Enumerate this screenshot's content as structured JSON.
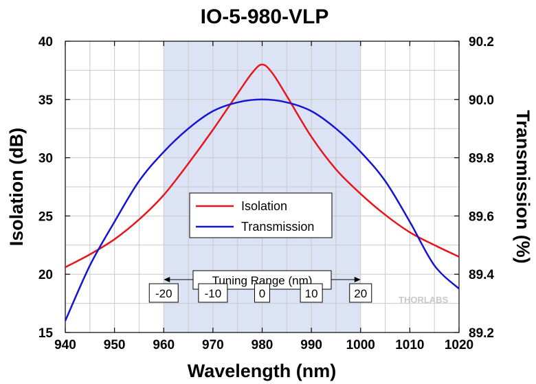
{
  "chart_data": {
    "type": "line",
    "title": "IO-5-980-VLP",
    "xlabel": "Wavelength (nm)",
    "ylabel": "Isolation (dB)",
    "y2label": "Transmission (%)",
    "xlim": [
      940,
      1020
    ],
    "ylim": [
      15,
      40
    ],
    "y2lim": [
      89.2,
      90.2
    ],
    "x_ticks": [
      940,
      950,
      960,
      970,
      980,
      990,
      1000,
      1010,
      1020
    ],
    "y_ticks": [
      15,
      20,
      25,
      30,
      35,
      40
    ],
    "y2_ticks": [
      "89.2",
      "89.4",
      "89.6",
      "89.8",
      "90.0",
      "90.2"
    ],
    "grid": true,
    "shaded_region": {
      "x": [
        960,
        1000
      ],
      "color": "#dbe3f5"
    },
    "legend": {
      "placement": "center"
    },
    "series": [
      {
        "name": "Isolation",
        "axis": "left",
        "color": "#e8141b",
        "x": [
          940,
          945,
          950,
          955,
          960,
          965,
          970,
          975,
          978,
          980,
          982,
          985,
          990,
          995,
          1000,
          1005,
          1010,
          1015,
          1020
        ],
        "values": [
          20.6,
          21.7,
          23.0,
          24.7,
          26.8,
          29.5,
          32.4,
          35.5,
          37.3,
          38.0,
          37.3,
          35.3,
          31.8,
          29.0,
          26.9,
          25.1,
          23.6,
          22.5,
          21.5
        ]
      },
      {
        "name": "Transmission",
        "axis": "right",
        "color": "#1414d2",
        "x": [
          940,
          945,
          950,
          955,
          960,
          965,
          970,
          975,
          980,
          985,
          990,
          995,
          1000,
          1005,
          1010,
          1015,
          1020
        ],
        "values": [
          89.24,
          89.43,
          89.58,
          89.72,
          89.82,
          89.9,
          89.96,
          89.99,
          90.0,
          89.99,
          89.96,
          89.9,
          89.82,
          89.72,
          89.58,
          89.43,
          89.35
        ]
      }
    ],
    "annotations": {
      "tuning_range_label": "Tuning Range (nm)",
      "tuning_offsets": [
        "-20",
        "-10",
        "0",
        "10",
        "20"
      ],
      "tuning_offset_x": [
        960,
        970,
        980,
        990,
        1000
      ]
    },
    "watermark": "THORLABS"
  }
}
